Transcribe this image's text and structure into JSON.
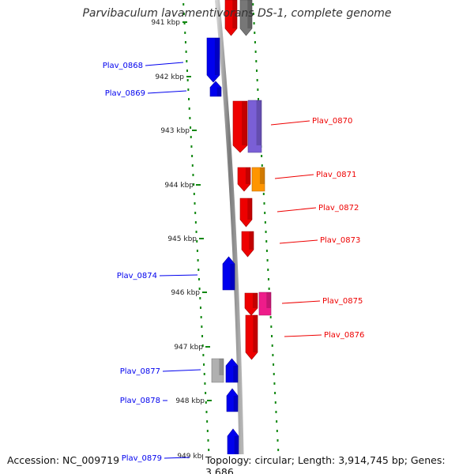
{
  "title": "Parvibaculum lavamentivorans DS-1, complete genome",
  "footer": {
    "accession": "Accession: NC_009719",
    "topology": "Topology: circular; Length: 3,914,745 bp; Genes: 3,686"
  },
  "colors": {
    "plus_strand": "#ee0000",
    "minus_strand": "#0000ee",
    "axis": "#999999",
    "scale_dots": "#118811",
    "gray_gene": "#b0b0b0",
    "purple_gene": "#7a5fd6",
    "orange_gene": "#ff9500",
    "magenta_gene": "#ee1c8a"
  },
  "scale_ticks": [
    "941 kbp",
    "942 kbp",
    "943 kbp",
    "944 kbp",
    "945 kbp",
    "946 kbp",
    "947 kbp",
    "948 kbp",
    "949 kbp"
  ],
  "genes_left": [
    {
      "label": "Plav_0868",
      "color_key": "minus_strand"
    },
    {
      "label": "Plav_0869",
      "color_key": "minus_strand"
    },
    {
      "label": "Plav_0874",
      "color_key": "minus_strand"
    },
    {
      "label": "Plav_0877",
      "color_key": "minus_strand"
    },
    {
      "label": "Plav_0878",
      "color_key": "minus_strand"
    },
    {
      "label": "Plav_0879",
      "color_key": "minus_strand"
    }
  ],
  "genes_right": [
    {
      "label": "Plav_0870",
      "color_key": "plus_strand"
    },
    {
      "label": "Plav_0871",
      "color_key": "plus_strand"
    },
    {
      "label": "Plav_0872",
      "color_key": "plus_strand"
    },
    {
      "label": "Plav_0873",
      "color_key": "plus_strand"
    },
    {
      "label": "Plav_0875",
      "color_key": "plus_strand"
    },
    {
      "label": "Plav_0876",
      "color_key": "plus_strand"
    }
  ]
}
